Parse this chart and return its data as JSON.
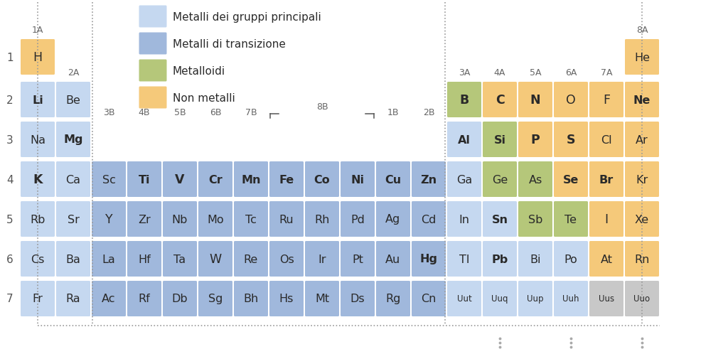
{
  "background": "#ffffff",
  "colors": {
    "light_blue": "#c5d8f0",
    "blue": "#a0b8dc",
    "green": "#b5c77a",
    "orange": "#f5c97a",
    "gray": "#c8c8c8",
    "white": "#ffffff"
  },
  "legend": {
    "light_blue_label": "Metalli dei gruppi principali",
    "blue_label": "Metalli di transizione",
    "green_label": "Metalloidi",
    "orange_label": "Non metalli"
  },
  "elements": [
    {
      "symbol": "H",
      "period": 1,
      "group": 1,
      "color": "orange",
      "bold": false
    },
    {
      "symbol": "He",
      "period": 1,
      "group": 18,
      "color": "orange",
      "bold": false
    },
    {
      "symbol": "Li",
      "period": 2,
      "group": 1,
      "color": "light_blue",
      "bold": true
    },
    {
      "symbol": "Be",
      "period": 2,
      "group": 2,
      "color": "light_blue",
      "bold": false
    },
    {
      "symbol": "B",
      "period": 2,
      "group": 13,
      "color": "green",
      "bold": true
    },
    {
      "symbol": "C",
      "period": 2,
      "group": 14,
      "color": "orange",
      "bold": true
    },
    {
      "symbol": "N",
      "period": 2,
      "group": 15,
      "color": "orange",
      "bold": true
    },
    {
      "symbol": "O",
      "period": 2,
      "group": 16,
      "color": "orange",
      "bold": false
    },
    {
      "symbol": "F",
      "period": 2,
      "group": 17,
      "color": "orange",
      "bold": false
    },
    {
      "symbol": "Ne",
      "period": 2,
      "group": 18,
      "color": "orange",
      "bold": true
    },
    {
      "symbol": "Na",
      "period": 3,
      "group": 1,
      "color": "light_blue",
      "bold": false
    },
    {
      "symbol": "Mg",
      "period": 3,
      "group": 2,
      "color": "light_blue",
      "bold": true
    },
    {
      "symbol": "Al",
      "period": 3,
      "group": 13,
      "color": "light_blue",
      "bold": true
    },
    {
      "symbol": "Si",
      "period": 3,
      "group": 14,
      "color": "green",
      "bold": true
    },
    {
      "symbol": "P",
      "period": 3,
      "group": 15,
      "color": "orange",
      "bold": true
    },
    {
      "symbol": "S",
      "period": 3,
      "group": 16,
      "color": "orange",
      "bold": true
    },
    {
      "symbol": "Cl",
      "period": 3,
      "group": 17,
      "color": "orange",
      "bold": false
    },
    {
      "symbol": "Ar",
      "period": 3,
      "group": 18,
      "color": "orange",
      "bold": false
    },
    {
      "symbol": "K",
      "period": 4,
      "group": 1,
      "color": "light_blue",
      "bold": true
    },
    {
      "symbol": "Ca",
      "period": 4,
      "group": 2,
      "color": "light_blue",
      "bold": false
    },
    {
      "symbol": "Sc",
      "period": 4,
      "group": 3,
      "color": "blue",
      "bold": false
    },
    {
      "symbol": "Ti",
      "period": 4,
      "group": 4,
      "color": "blue",
      "bold": true
    },
    {
      "symbol": "V",
      "period": 4,
      "group": 5,
      "color": "blue",
      "bold": true
    },
    {
      "symbol": "Cr",
      "period": 4,
      "group": 6,
      "color": "blue",
      "bold": true
    },
    {
      "symbol": "Mn",
      "period": 4,
      "group": 7,
      "color": "blue",
      "bold": true
    },
    {
      "symbol": "Fe",
      "period": 4,
      "group": 8,
      "color": "blue",
      "bold": true
    },
    {
      "symbol": "Co",
      "period": 4,
      "group": 9,
      "color": "blue",
      "bold": true
    },
    {
      "symbol": "Ni",
      "period": 4,
      "group": 10,
      "color": "blue",
      "bold": true
    },
    {
      "symbol": "Cu",
      "period": 4,
      "group": 11,
      "color": "blue",
      "bold": true
    },
    {
      "symbol": "Zn",
      "period": 4,
      "group": 12,
      "color": "blue",
      "bold": true
    },
    {
      "symbol": "Ga",
      "period": 4,
      "group": 13,
      "color": "light_blue",
      "bold": false
    },
    {
      "symbol": "Ge",
      "period": 4,
      "group": 14,
      "color": "green",
      "bold": false
    },
    {
      "symbol": "As",
      "period": 4,
      "group": 15,
      "color": "green",
      "bold": false
    },
    {
      "symbol": "Se",
      "period": 4,
      "group": 16,
      "color": "orange",
      "bold": true
    },
    {
      "symbol": "Br",
      "period": 4,
      "group": 17,
      "color": "orange",
      "bold": true
    },
    {
      "symbol": "Kr",
      "period": 4,
      "group": 18,
      "color": "orange",
      "bold": false
    },
    {
      "symbol": "Rb",
      "period": 5,
      "group": 1,
      "color": "light_blue",
      "bold": false
    },
    {
      "symbol": "Sr",
      "period": 5,
      "group": 2,
      "color": "light_blue",
      "bold": false
    },
    {
      "symbol": "Y",
      "period": 5,
      "group": 3,
      "color": "blue",
      "bold": false
    },
    {
      "symbol": "Zr",
      "period": 5,
      "group": 4,
      "color": "blue",
      "bold": false
    },
    {
      "symbol": "Nb",
      "period": 5,
      "group": 5,
      "color": "blue",
      "bold": false
    },
    {
      "symbol": "Mo",
      "period": 5,
      "group": 6,
      "color": "blue",
      "bold": false
    },
    {
      "symbol": "Tc",
      "period": 5,
      "group": 7,
      "color": "blue",
      "bold": false
    },
    {
      "symbol": "Ru",
      "period": 5,
      "group": 8,
      "color": "blue",
      "bold": false
    },
    {
      "symbol": "Rh",
      "period": 5,
      "group": 9,
      "color": "blue",
      "bold": false
    },
    {
      "symbol": "Pd",
      "period": 5,
      "group": 10,
      "color": "blue",
      "bold": false
    },
    {
      "symbol": "Ag",
      "period": 5,
      "group": 11,
      "color": "blue",
      "bold": false
    },
    {
      "symbol": "Cd",
      "period": 5,
      "group": 12,
      "color": "blue",
      "bold": false
    },
    {
      "symbol": "In",
      "period": 5,
      "group": 13,
      "color": "light_blue",
      "bold": false
    },
    {
      "symbol": "Sn",
      "period": 5,
      "group": 14,
      "color": "light_blue",
      "bold": true
    },
    {
      "symbol": "Sb",
      "period": 5,
      "group": 15,
      "color": "green",
      "bold": false
    },
    {
      "symbol": "Te",
      "period": 5,
      "group": 16,
      "color": "green",
      "bold": false
    },
    {
      "symbol": "I",
      "period": 5,
      "group": 17,
      "color": "orange",
      "bold": false
    },
    {
      "symbol": "Xe",
      "period": 5,
      "group": 18,
      "color": "orange",
      "bold": false
    },
    {
      "symbol": "Cs",
      "period": 6,
      "group": 1,
      "color": "light_blue",
      "bold": false
    },
    {
      "symbol": "Ba",
      "period": 6,
      "group": 2,
      "color": "light_blue",
      "bold": false
    },
    {
      "symbol": "La",
      "period": 6,
      "group": 3,
      "color": "blue",
      "bold": false
    },
    {
      "symbol": "Hf",
      "period": 6,
      "group": 4,
      "color": "blue",
      "bold": false
    },
    {
      "symbol": "Ta",
      "period": 6,
      "group": 5,
      "color": "blue",
      "bold": false
    },
    {
      "symbol": "W",
      "period": 6,
      "group": 6,
      "color": "blue",
      "bold": false
    },
    {
      "symbol": "Re",
      "period": 6,
      "group": 7,
      "color": "blue",
      "bold": false
    },
    {
      "symbol": "Os",
      "period": 6,
      "group": 8,
      "color": "blue",
      "bold": false
    },
    {
      "symbol": "Ir",
      "period": 6,
      "group": 9,
      "color": "blue",
      "bold": false
    },
    {
      "symbol": "Pt",
      "period": 6,
      "group": 10,
      "color": "blue",
      "bold": false
    },
    {
      "symbol": "Au",
      "period": 6,
      "group": 11,
      "color": "blue",
      "bold": false
    },
    {
      "symbol": "Hg",
      "period": 6,
      "group": 12,
      "color": "blue",
      "bold": true
    },
    {
      "symbol": "Tl",
      "period": 6,
      "group": 13,
      "color": "light_blue",
      "bold": false
    },
    {
      "symbol": "Pb",
      "period": 6,
      "group": 14,
      "color": "light_blue",
      "bold": true
    },
    {
      "symbol": "Bi",
      "period": 6,
      "group": 15,
      "color": "light_blue",
      "bold": false
    },
    {
      "symbol": "Po",
      "period": 6,
      "group": 16,
      "color": "light_blue",
      "bold": false
    },
    {
      "symbol": "At",
      "period": 6,
      "group": 17,
      "color": "orange",
      "bold": false
    },
    {
      "symbol": "Rn",
      "period": 6,
      "group": 18,
      "color": "orange",
      "bold": false
    },
    {
      "symbol": "Fr",
      "period": 7,
      "group": 1,
      "color": "light_blue",
      "bold": false
    },
    {
      "symbol": "Ra",
      "period": 7,
      "group": 2,
      "color": "light_blue",
      "bold": false
    },
    {
      "symbol": "Ac",
      "period": 7,
      "group": 3,
      "color": "blue",
      "bold": false
    },
    {
      "symbol": "Rf",
      "period": 7,
      "group": 4,
      "color": "blue",
      "bold": false
    },
    {
      "symbol": "Db",
      "period": 7,
      "group": 5,
      "color": "blue",
      "bold": false
    },
    {
      "symbol": "Sg",
      "period": 7,
      "group": 6,
      "color": "blue",
      "bold": false
    },
    {
      "symbol": "Bh",
      "period": 7,
      "group": 7,
      "color": "blue",
      "bold": false
    },
    {
      "symbol": "Hs",
      "period": 7,
      "group": 8,
      "color": "blue",
      "bold": false
    },
    {
      "symbol": "Mt",
      "period": 7,
      "group": 9,
      "color": "blue",
      "bold": false
    },
    {
      "symbol": "Ds",
      "period": 7,
      "group": 10,
      "color": "blue",
      "bold": false
    },
    {
      "symbol": "Rg",
      "period": 7,
      "group": 11,
      "color": "blue",
      "bold": false
    },
    {
      "symbol": "Cn",
      "period": 7,
      "group": 12,
      "color": "blue",
      "bold": false
    },
    {
      "symbol": "Uut",
      "period": 7,
      "group": 13,
      "color": "light_blue",
      "bold": false
    },
    {
      "symbol": "Uuq",
      "period": 7,
      "group": 14,
      "color": "light_blue",
      "bold": false
    },
    {
      "symbol": "Uup",
      "period": 7,
      "group": 15,
      "color": "light_blue",
      "bold": false
    },
    {
      "symbol": "Uuh",
      "period": 7,
      "group": 16,
      "color": "light_blue",
      "bold": false
    },
    {
      "symbol": "Uus",
      "period": 7,
      "group": 17,
      "color": "gray",
      "bold": false
    },
    {
      "symbol": "Uuo",
      "period": 7,
      "group": 18,
      "color": "gray",
      "bold": false
    }
  ]
}
